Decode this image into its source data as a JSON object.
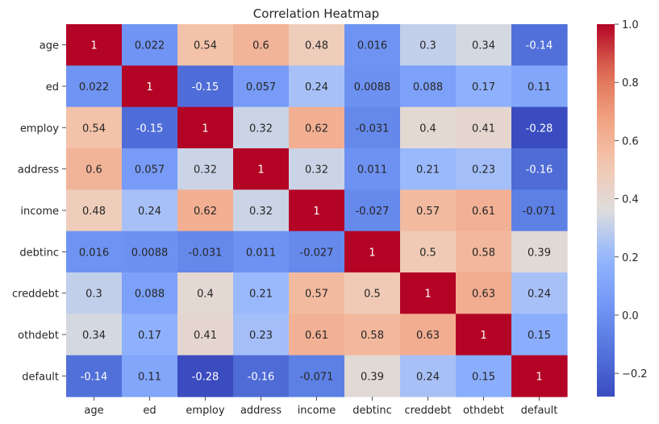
{
  "chart_data": {
    "type": "heatmap",
    "title": "Correlation Heatmap",
    "row_labels": [
      "age",
      "ed",
      "employ",
      "address",
      "income",
      "debtinc",
      "creddebt",
      "othdebt",
      "default"
    ],
    "col_labels": [
      "age",
      "ed",
      "employ",
      "address",
      "income",
      "debtinc",
      "creddebt",
      "othdebt",
      "default"
    ],
    "values": [
      [
        1,
        0.022,
        0.54,
        0.6,
        0.48,
        0.016,
        0.3,
        0.34,
        -0.14
      ],
      [
        0.022,
        1,
        -0.15,
        0.057,
        0.24,
        0.0088,
        0.088,
        0.17,
        0.11
      ],
      [
        0.54,
        -0.15,
        1,
        0.32,
        0.62,
        -0.031,
        0.4,
        0.41,
        -0.28
      ],
      [
        0.6,
        0.057,
        0.32,
        1,
        0.32,
        0.011,
        0.21,
        0.23,
        -0.16
      ],
      [
        0.48,
        0.24,
        0.62,
        0.32,
        1,
        -0.027,
        0.57,
        0.61,
        -0.071
      ],
      [
        0.016,
        0.0088,
        -0.031,
        0.011,
        -0.027,
        1,
        0.5,
        0.58,
        0.39
      ],
      [
        0.3,
        0.088,
        0.4,
        0.21,
        0.57,
        0.5,
        1,
        0.63,
        0.24
      ],
      [
        0.34,
        0.17,
        0.41,
        0.23,
        0.61,
        0.58,
        0.63,
        1,
        0.15
      ],
      [
        -0.14,
        0.11,
        -0.28,
        -0.16,
        -0.071,
        0.39,
        0.24,
        0.15,
        1
      ]
    ],
    "annotations": [
      [
        "1",
        "0.022",
        "0.54",
        "0.6",
        "0.48",
        "0.016",
        "0.3",
        "0.34",
        "-0.14"
      ],
      [
        "0.022",
        "1",
        "-0.15",
        "0.057",
        "0.24",
        "0.0088",
        "0.088",
        "0.17",
        "0.11"
      ],
      [
        "0.54",
        "-0.15",
        "1",
        "0.32",
        "0.62",
        "-0.031",
        "0.4",
        "0.41",
        "-0.28"
      ],
      [
        "0.6",
        "0.057",
        "0.32",
        "1",
        "0.32",
        "0.011",
        "0.21",
        "0.23",
        "-0.16"
      ],
      [
        "0.48",
        "0.24",
        "0.62",
        "0.32",
        "1",
        "-0.027",
        "0.57",
        "0.61",
        "-0.071"
      ],
      [
        "0.016",
        "0.0088",
        "-0.031",
        "0.011",
        "-0.027",
        "1",
        "0.5",
        "0.58",
        "0.39"
      ],
      [
        "0.3",
        "0.088",
        "0.4",
        "0.21",
        "0.57",
        "0.5",
        "1",
        "0.63",
        "0.24"
      ],
      [
        "0.34",
        "0.17",
        "0.41",
        "0.23",
        "0.61",
        "0.58",
        "0.63",
        "1",
        "0.15"
      ],
      [
        "-0.14",
        "0.11",
        "-0.28",
        "-0.16",
        "-0.071",
        "0.39",
        "0.24",
        "0.15",
        "1"
      ]
    ],
    "colormap": "coolwarm",
    "vmin": -0.28,
    "vmax": 1.0,
    "colorbar_ticks": [
      -0.2,
      0.0,
      0.2,
      0.4,
      0.6,
      0.8,
      1.0
    ],
    "colorbar_tick_labels": [
      "−0.2",
      "0.0",
      "0.2",
      "0.4",
      "0.6",
      "0.8",
      "1.0"
    ],
    "grid": false
  }
}
